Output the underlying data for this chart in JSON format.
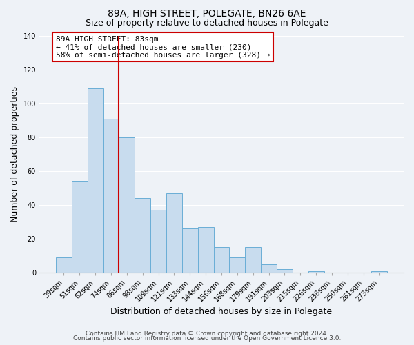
{
  "title": "89A, HIGH STREET, POLEGATE, BN26 6AE",
  "subtitle": "Size of property relative to detached houses in Polegate",
  "xlabel": "Distribution of detached houses by size in Polegate",
  "ylabel": "Number of detached properties",
  "categories": [
    "39sqm",
    "51sqm",
    "62sqm",
    "74sqm",
    "86sqm",
    "98sqm",
    "109sqm",
    "121sqm",
    "133sqm",
    "144sqm",
    "156sqm",
    "168sqm",
    "179sqm",
    "191sqm",
    "203sqm",
    "215sqm",
    "226sqm",
    "238sqm",
    "250sqm",
    "261sqm",
    "273sqm"
  ],
  "values": [
    9,
    54,
    109,
    91,
    80,
    44,
    37,
    47,
    26,
    27,
    15,
    9,
    15,
    5,
    2,
    0,
    1,
    0,
    0,
    0,
    1
  ],
  "bar_color": "#c8dcee",
  "bar_edge_color": "#6aaed6",
  "vline_color": "#cc0000",
  "vline_x": 3.5,
  "annotation_text": "89A HIGH STREET: 83sqm\n← 41% of detached houses are smaller (230)\n58% of semi-detached houses are larger (328) →",
  "annotation_box_edgecolor": "#cc0000",
  "annotation_box_facecolor": "#ffffff",
  "ylim": [
    0,
    140
  ],
  "yticks": [
    0,
    20,
    40,
    60,
    80,
    100,
    120,
    140
  ],
  "footer_line1": "Contains HM Land Registry data © Crown copyright and database right 2024.",
  "footer_line2": "Contains public sector information licensed under the Open Government Licence 3.0.",
  "background_color": "#eef2f7",
  "grid_color": "#ffffff",
  "title_fontsize": 10,
  "subtitle_fontsize": 9,
  "axis_label_fontsize": 9,
  "tick_fontsize": 7,
  "annotation_fontsize": 8,
  "footer_fontsize": 6.5
}
